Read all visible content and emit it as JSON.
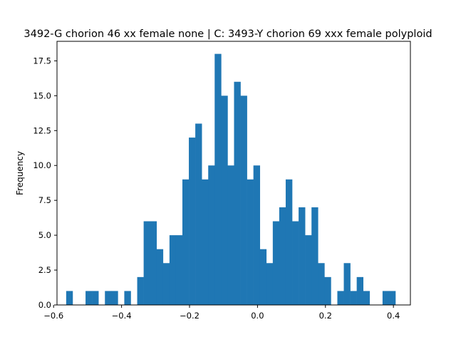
{
  "chart_data": {
    "type": "bar",
    "title": "3492-G chorion 46 xx female none | C: 3493-Y chorion 69 xxx female polyploid",
    "xlabel": "",
    "ylabel": "Frequency",
    "xlim": [
      -0.59,
      0.45
    ],
    "ylim": [
      0,
      18.9
    ],
    "bin_width": 0.019,
    "bin_starts": [
      -0.563,
      -0.544,
      -0.525,
      -0.506,
      -0.487,
      -0.468,
      -0.449,
      -0.43,
      -0.411,
      -0.392,
      -0.373,
      -0.354,
      -0.335,
      -0.316,
      -0.297,
      -0.278,
      -0.259,
      -0.24,
      -0.221,
      -0.202,
      -0.183,
      -0.164,
      -0.145,
      -0.126,
      -0.107,
      -0.088,
      -0.069,
      -0.05,
      -0.031,
      -0.012,
      0.007,
      0.026,
      0.045,
      0.064,
      0.083,
      0.102,
      0.121,
      0.14,
      0.159,
      0.178,
      0.197,
      0.216,
      0.235,
      0.254,
      0.273,
      0.292,
      0.311,
      0.33,
      0.349,
      0.368,
      0.387
    ],
    "values": [
      1,
      0,
      0,
      1,
      1,
      0,
      1,
      1,
      0,
      1,
      0,
      2,
      6,
      6,
      4,
      3,
      5,
      5,
      9,
      12,
      13,
      9,
      10,
      18,
      15,
      10,
      16,
      15,
      9,
      10,
      4,
      3,
      6,
      7,
      9,
      6,
      7,
      5,
      7,
      3,
      2,
      0,
      1,
      3,
      1,
      2,
      1,
      0,
      0,
      1,
      1
    ],
    "x_ticks": [
      -0.6,
      -0.4,
      -0.2,
      0.0,
      0.2,
      0.4
    ],
    "x_tick_labels": [
      "−0.6",
      "−0.4",
      "−0.2",
      "0.0",
      "0.2",
      "0.4"
    ],
    "y_ticks": [
      0,
      2.5,
      5,
      7.5,
      10,
      12.5,
      15,
      17.5
    ],
    "y_tick_labels": [
      "0.0",
      "2.5",
      "5.0",
      "7.5",
      "10.0",
      "12.5",
      "15.0",
      "17.5"
    ],
    "grid": false,
    "bar_color": "#1f77b4"
  }
}
